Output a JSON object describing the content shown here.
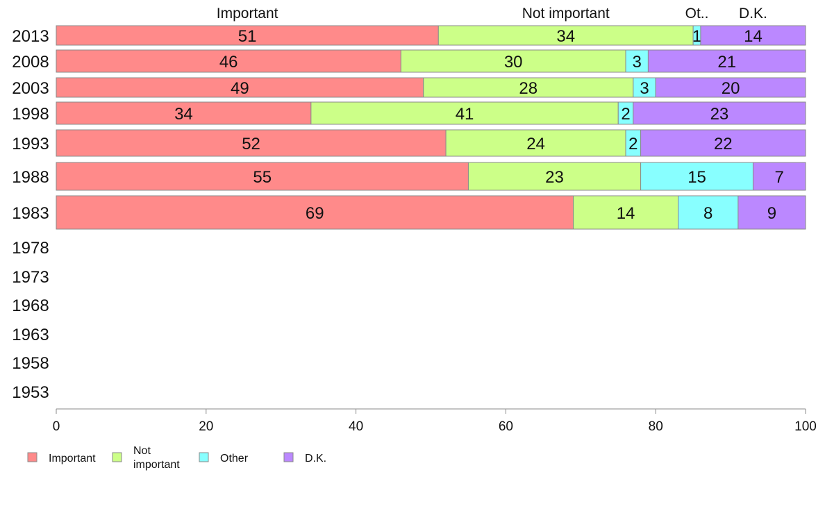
{
  "chart_data": {
    "type": "bar",
    "orientation": "horizontal",
    "stacked": true,
    "title": "",
    "xlabel": "",
    "ylabel": "",
    "xlim": [
      0,
      100
    ],
    "x_ticks": [
      "0",
      "20",
      "40",
      "60",
      "80",
      "100"
    ],
    "grid": false,
    "legend_position": "bottom-left",
    "categories": [
      "2013",
      "2008",
      "2003",
      "1998",
      "1993",
      "1988",
      "1983",
      "1978",
      "1973",
      "1968",
      "1963",
      "1958",
      "1953"
    ],
    "series": [
      {
        "name": "Important",
        "legend_label": "Important",
        "top_label": "Important",
        "color": "#ff8a8a",
        "values": [
          51,
          46,
          49,
          34,
          52,
          55,
          69,
          null,
          null,
          null,
          null,
          null,
          null
        ]
      },
      {
        "name": "Not important",
        "legend_label": "Not\nimportant",
        "top_label": "Not important",
        "color": "#ccff88",
        "values": [
          34,
          30,
          28,
          41,
          24,
          23,
          14,
          null,
          null,
          null,
          null,
          null,
          null
        ]
      },
      {
        "name": "Other",
        "legend_label": "Other",
        "top_label": "Ot..",
        "color": "#88ffff",
        "values": [
          1,
          3,
          3,
          2,
          2,
          15,
          8,
          null,
          null,
          null,
          null,
          null,
          null
        ]
      },
      {
        "name": "D.K.",
        "legend_label": "D.K.",
        "top_label": "D.K.",
        "color": "#bb88ff",
        "values": [
          14,
          21,
          20,
          23,
          22,
          7,
          9,
          null,
          null,
          null,
          null,
          null,
          null
        ]
      }
    ]
  }
}
